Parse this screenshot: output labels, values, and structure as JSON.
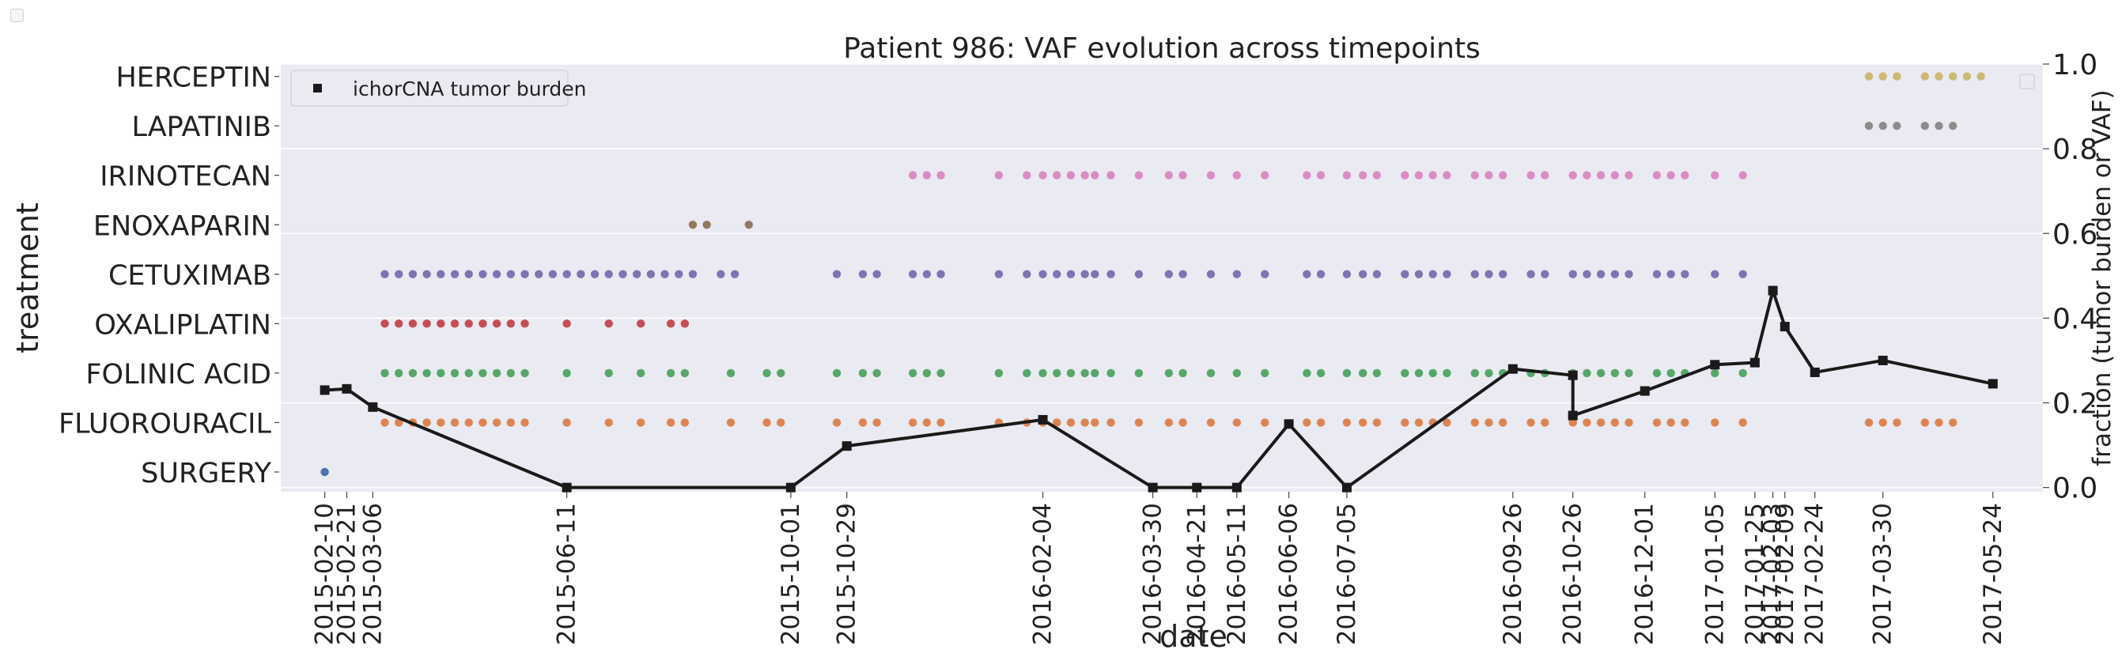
{
  "chart_data": {
    "type": "scatter",
    "title": "Patient 986: VAF evolution across timepoints",
    "xlabel": "date",
    "ylabel_left": "treatment",
    "ylabel_right": "fraction (tumor burden or VAF)",
    "xlim": [
      "2015-01-19",
      "2017-06-18"
    ],
    "ylim_right": [
      -0.01,
      1.0
    ],
    "right_ticks": [
      "0.0",
      "0.2",
      "0.4",
      "0.6",
      "0.8",
      "1.0"
    ],
    "grid": true,
    "legend": {
      "placement": "top-left",
      "label": "ichorCNA tumor burden"
    },
    "x_tick_labels": [
      "2015-02-10",
      "2015-02-21",
      "2015-03-06",
      "2015-06-11",
      "2015-10-01",
      "2015-10-29",
      "2016-02-04",
      "2016-03-30",
      "2016-04-21",
      "2016-05-11",
      "2016-06-06",
      "2016-07-05",
      "2016-09-26",
      "2016-10-26",
      "2016-12-01",
      "2017-01-05",
      "2017-01-25",
      "2017-02-03",
      "2017-02-09",
      "2017-02-24",
      "2017-03-30",
      "2017-05-24"
    ],
    "treatments": [
      {
        "name": "SURGERY",
        "color": "#4c72b0",
        "dates": [
          "2015-02-10"
        ]
      },
      {
        "name": "FLUOROURACIL",
        "color": "#dd8452",
        "dates": [
          "2015-03-12",
          "2015-03-19",
          "2015-03-26",
          "2015-04-02",
          "2015-04-09",
          "2015-04-16",
          "2015-04-23",
          "2015-04-30",
          "2015-05-07",
          "2015-05-14",
          "2015-05-21",
          "2015-06-11",
          "2015-07-02",
          "2015-07-18",
          "2015-08-02",
          "2015-08-09",
          "2015-09-01",
          "2015-09-19",
          "2015-09-26",
          "2015-10-24",
          "2015-11-06",
          "2015-11-13",
          "2015-12-01",
          "2015-12-08",
          "2015-12-15",
          "2016-01-13",
          "2016-01-27",
          "2016-02-04",
          "2016-02-11",
          "2016-02-18",
          "2016-02-25",
          "2016-03-01",
          "2016-03-09",
          "2016-03-23",
          "2016-04-07",
          "2016-04-14",
          "2016-04-28",
          "2016-05-11",
          "2016-05-25",
          "2016-06-15",
          "2016-06-22",
          "2016-07-05",
          "2016-07-13",
          "2016-07-20",
          "2016-08-03",
          "2016-08-10",
          "2016-08-17",
          "2016-08-24",
          "2016-09-07",
          "2016-09-14",
          "2016-09-21",
          "2016-10-05",
          "2016-10-12",
          "2016-10-26",
          "2016-11-02",
          "2016-11-09",
          "2016-11-16",
          "2016-11-23",
          "2016-12-07",
          "2016-12-14",
          "2016-12-21",
          "2017-01-05",
          "2017-01-19",
          "2017-03-23",
          "2017-03-30",
          "2017-04-06",
          "2017-04-20",
          "2017-04-27",
          "2017-05-04"
        ]
      },
      {
        "name": "FOLINIC ACID",
        "color": "#55a868",
        "dates": [
          "2015-03-12",
          "2015-03-19",
          "2015-03-26",
          "2015-04-02",
          "2015-04-09",
          "2015-04-16",
          "2015-04-23",
          "2015-04-30",
          "2015-05-07",
          "2015-05-14",
          "2015-05-21",
          "2015-06-11",
          "2015-07-02",
          "2015-07-18",
          "2015-08-02",
          "2015-08-09",
          "2015-09-01",
          "2015-09-19",
          "2015-09-26",
          "2015-10-24",
          "2015-11-06",
          "2015-11-13",
          "2015-12-01",
          "2015-12-08",
          "2015-12-15",
          "2016-01-13",
          "2016-01-27",
          "2016-02-04",
          "2016-02-11",
          "2016-02-18",
          "2016-02-25",
          "2016-03-01",
          "2016-03-09",
          "2016-03-23",
          "2016-04-07",
          "2016-04-14",
          "2016-04-28",
          "2016-05-11",
          "2016-05-25",
          "2016-06-15",
          "2016-06-22",
          "2016-07-05",
          "2016-07-13",
          "2016-07-20",
          "2016-08-03",
          "2016-08-10",
          "2016-08-17",
          "2016-08-24",
          "2016-09-07",
          "2016-09-14",
          "2016-09-21",
          "2016-10-05",
          "2016-10-12",
          "2016-10-26",
          "2016-11-02",
          "2016-11-09",
          "2016-11-16",
          "2016-11-23",
          "2016-12-07",
          "2016-12-14",
          "2016-12-21",
          "2017-01-05",
          "2017-01-19"
        ]
      },
      {
        "name": "OXALIPLATIN",
        "color": "#c44e52",
        "dates": [
          "2015-03-12",
          "2015-03-19",
          "2015-03-26",
          "2015-04-02",
          "2015-04-09",
          "2015-04-16",
          "2015-04-23",
          "2015-04-30",
          "2015-05-07",
          "2015-05-14",
          "2015-05-21",
          "2015-06-11",
          "2015-07-02",
          "2015-07-18",
          "2015-08-02",
          "2015-08-09"
        ]
      },
      {
        "name": "CETUXIMAB",
        "color": "#8172b3",
        "dates": [
          "2015-03-12",
          "2015-03-19",
          "2015-03-26",
          "2015-04-02",
          "2015-04-09",
          "2015-04-16",
          "2015-04-23",
          "2015-04-30",
          "2015-05-07",
          "2015-05-14",
          "2015-05-21",
          "2015-05-28",
          "2015-06-04",
          "2015-06-11",
          "2015-06-18",
          "2015-06-25",
          "2015-07-02",
          "2015-07-09",
          "2015-07-16",
          "2015-07-23",
          "2015-07-30",
          "2015-08-06",
          "2015-08-13",
          "2015-08-27",
          "2015-09-03",
          "2015-10-24",
          "2015-11-06",
          "2015-11-13",
          "2015-12-01",
          "2015-12-08",
          "2015-12-15",
          "2016-01-13",
          "2016-01-27",
          "2016-02-04",
          "2016-02-11",
          "2016-02-18",
          "2016-02-25",
          "2016-03-01",
          "2016-03-09",
          "2016-03-23",
          "2016-04-07",
          "2016-04-14",
          "2016-04-28",
          "2016-05-11",
          "2016-05-25",
          "2016-06-15",
          "2016-06-22",
          "2016-07-05",
          "2016-07-13",
          "2016-07-20",
          "2016-08-03",
          "2016-08-10",
          "2016-08-17",
          "2016-08-24",
          "2016-09-07",
          "2016-09-14",
          "2016-09-21",
          "2016-10-05",
          "2016-10-12",
          "2016-10-26",
          "2016-11-02",
          "2016-11-09",
          "2016-11-16",
          "2016-11-23",
          "2016-12-07",
          "2016-12-14",
          "2016-12-21",
          "2017-01-05",
          "2017-01-19"
        ]
      },
      {
        "name": "ENOXAPARIN",
        "color": "#937860",
        "dates": [
          "2015-08-13",
          "2015-08-20",
          "2015-09-10"
        ]
      },
      {
        "name": "IRINOTECAN",
        "color": "#da8bc3",
        "dates": [
          "2015-12-01",
          "2015-12-08",
          "2015-12-15",
          "2016-01-13",
          "2016-01-27",
          "2016-02-04",
          "2016-02-11",
          "2016-02-18",
          "2016-02-25",
          "2016-03-01",
          "2016-03-09",
          "2016-03-23",
          "2016-04-07",
          "2016-04-14",
          "2016-04-28",
          "2016-05-11",
          "2016-05-25",
          "2016-06-15",
          "2016-06-22",
          "2016-07-05",
          "2016-07-13",
          "2016-07-20",
          "2016-08-03",
          "2016-08-10",
          "2016-08-17",
          "2016-08-24",
          "2016-09-07",
          "2016-09-14",
          "2016-09-21",
          "2016-10-05",
          "2016-10-12",
          "2016-10-26",
          "2016-11-02",
          "2016-11-09",
          "2016-11-16",
          "2016-11-23",
          "2016-12-07",
          "2016-12-14",
          "2016-12-21",
          "2017-01-05",
          "2017-01-19"
        ]
      },
      {
        "name": "LAPATINIB",
        "color": "#8c8c8c",
        "dates": [
          "2017-03-23",
          "2017-03-30",
          "2017-04-06",
          "2017-04-20",
          "2017-04-27",
          "2017-05-04"
        ]
      },
      {
        "name": "HERCEPTIN",
        "color": "#ccb974",
        "dates": [
          "2017-03-23",
          "2017-03-30",
          "2017-04-06",
          "2017-04-20",
          "2017-04-27",
          "2017-05-04",
          "2017-05-11",
          "2017-05-18"
        ]
      }
    ],
    "tumor_burden": {
      "name": "ichorCNA tumor burden",
      "color": "#1a1a1a",
      "points": [
        {
          "x": "2015-02-10",
          "y": 0.23
        },
        {
          "x": "2015-02-21",
          "y": 0.233
        },
        {
          "x": "2015-03-06",
          "y": 0.19
        },
        {
          "x": "2015-06-11",
          "y": 0.0
        },
        {
          "x": "2015-10-01",
          "y": 0.0
        },
        {
          "x": "2015-10-29",
          "y": 0.098
        },
        {
          "x": "2016-02-04",
          "y": 0.16
        },
        {
          "x": "2016-03-30",
          "y": 0.0
        },
        {
          "x": "2016-04-21",
          "y": 0.0
        },
        {
          "x": "2016-05-11",
          "y": 0.0
        },
        {
          "x": "2016-06-06",
          "y": 0.15
        },
        {
          "x": "2016-07-05",
          "y": 0.0
        },
        {
          "x": "2016-09-26",
          "y": 0.28
        },
        {
          "x": "2016-10-26",
          "y": 0.265
        },
        {
          "x": "2016-10-26",
          "y": 0.17
        },
        {
          "x": "2016-12-01",
          "y": 0.228
        },
        {
          "x": "2017-01-05",
          "y": 0.29
        },
        {
          "x": "2017-01-25",
          "y": 0.295
        },
        {
          "x": "2017-02-03",
          "y": 0.465
        },
        {
          "x": "2017-02-09",
          "y": 0.38
        },
        {
          "x": "2017-02-24",
          "y": 0.272
        },
        {
          "x": "2017-03-30",
          "y": 0.3
        },
        {
          "x": "2017-05-24",
          "y": 0.245
        }
      ]
    }
  }
}
